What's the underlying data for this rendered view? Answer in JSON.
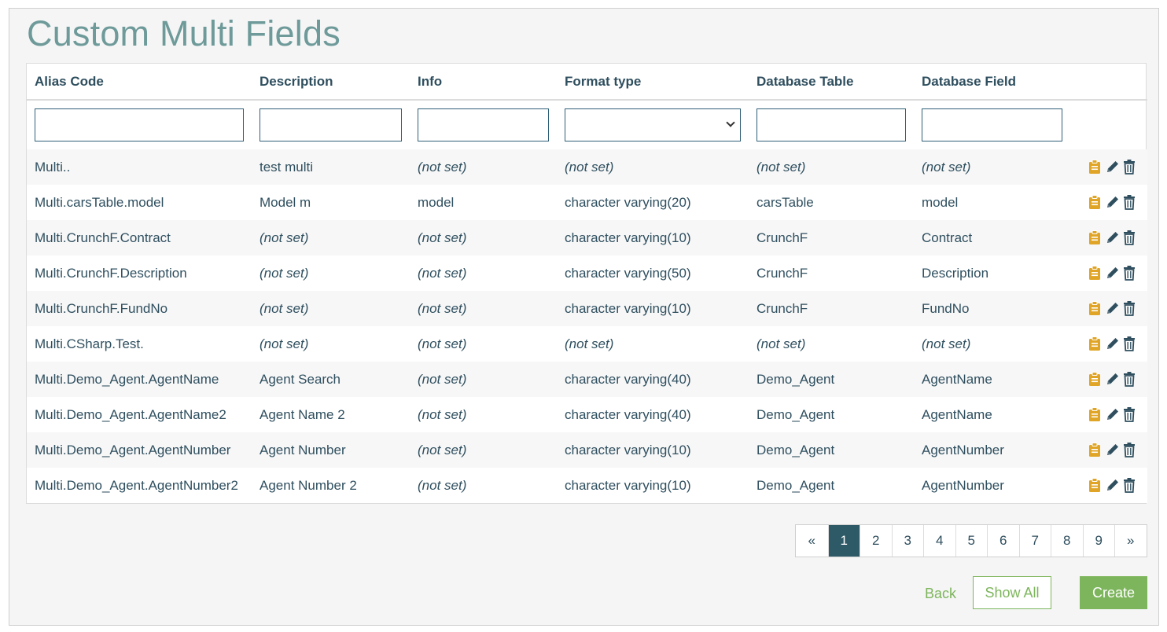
{
  "page": {
    "title": "Custom Multi Fields"
  },
  "table": {
    "columns": [
      "Alias Code",
      "Description",
      "Info",
      "Format type",
      "Database Table",
      "Database Field"
    ],
    "rows": [
      {
        "alias": "Multi..",
        "description": "test multi",
        "info": "(not set)",
        "format": "(not set)",
        "db_table": "(not set)",
        "db_field": "(not set)"
      },
      {
        "alias": "Multi.carsTable.model",
        "description": "Model m",
        "info": "model",
        "format": "character varying(20)",
        "db_table": "carsTable",
        "db_field": "model"
      },
      {
        "alias": "Multi.CrunchF.Contract",
        "description": "(not set)",
        "info": "(not set)",
        "format": "character varying(10)",
        "db_table": "CrunchF",
        "db_field": "Contract"
      },
      {
        "alias": "Multi.CrunchF.Description",
        "description": "(not set)",
        "info": "(not set)",
        "format": "character varying(50)",
        "db_table": "CrunchF",
        "db_field": "Description"
      },
      {
        "alias": "Multi.CrunchF.FundNo",
        "description": "(not set)",
        "info": "(not set)",
        "format": "character varying(10)",
        "db_table": "CrunchF",
        "db_field": "FundNo"
      },
      {
        "alias": "Multi.CSharp.Test.",
        "description": "(not set)",
        "info": "(not set)",
        "format": "(not set)",
        "db_table": "(not set)",
        "db_field": "(not set)"
      },
      {
        "alias": "Multi.Demo_Agent.AgentName",
        "description": "Agent Search",
        "info": "(not set)",
        "format": "character varying(40)",
        "db_table": "Demo_Agent",
        "db_field": "AgentName"
      },
      {
        "alias": "Multi.Demo_Agent.AgentName2",
        "description": "Agent Name 2",
        "info": "(not set)",
        "format": "character varying(40)",
        "db_table": "Demo_Agent",
        "db_field": "AgentName"
      },
      {
        "alias": "Multi.Demo_Agent.AgentNumber",
        "description": "Agent Number",
        "info": "(not set)",
        "format": "character varying(10)",
        "db_table": "Demo_Agent",
        "db_field": "AgentNumber"
      },
      {
        "alias": "Multi.Demo_Agent.AgentNumber2",
        "description": "Agent Number 2",
        "info": "(not set)",
        "format": "character varying(10)",
        "db_table": "Demo_Agent",
        "db_field": "AgentNumber"
      }
    ],
    "row_actions": [
      "clipboard-icon",
      "pencil-icon",
      "trash-icon"
    ],
    "not_set_color": "#c0392b"
  },
  "pagination": {
    "prev": "«",
    "pages": [
      "1",
      "2",
      "3",
      "4",
      "5",
      "6",
      "7",
      "8",
      "9"
    ],
    "next": "»",
    "active_page": "1"
  },
  "buttons": {
    "back": "Back",
    "show_all": "Show All",
    "create": "Create"
  },
  "colors": {
    "accent_green": "#7db55c",
    "active_page": "#2e5a68",
    "title": "#6e9a9a"
  }
}
